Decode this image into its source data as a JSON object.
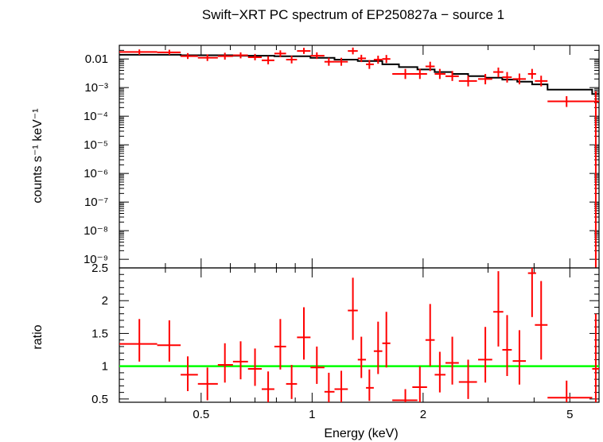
{
  "chart_data": [
    {
      "type": "line",
      "panel": "top",
      "title": "Swift−XRT PC spectrum of EP250827a − source 1",
      "ylabel": "counts s⁻¹ keV⁻¹",
      "xlabel": "",
      "xscale": "log",
      "yscale": "log",
      "xlim": [
        0.3,
        6.0
      ],
      "ylim": [
        5e-10,
        0.03
      ],
      "y_tick_labels": [
        "0.01",
        "10⁻³",
        "10⁻⁴",
        "10⁻⁵",
        "10⁻⁶",
        "10⁻⁷",
        "10⁻⁸",
        "10⁻⁹"
      ],
      "y_tick_values": [
        0.01,
        0.001,
        0.0001,
        1e-05,
        1e-06,
        1e-07,
        1e-08,
        1e-09
      ],
      "series": [
        {
          "kind": "data",
          "color": "#ff0000",
          "points": [
            {
              "x": 0.34,
              "xlo": 0.3,
              "xhi": 0.38,
              "y": 0.0175,
              "ylo": 0.014,
              "yhi": 0.0215
            },
            {
              "x": 0.41,
              "xlo": 0.38,
              "xhi": 0.44,
              "y": 0.017,
              "ylo": 0.014,
              "yhi": 0.021
            },
            {
              "x": 0.46,
              "xlo": 0.44,
              "xhi": 0.49,
              "y": 0.0125,
              "ylo": 0.01,
              "yhi": 0.016
            },
            {
              "x": 0.52,
              "xlo": 0.49,
              "xhi": 0.555,
              "y": 0.011,
              "ylo": 0.0085,
              "yhi": 0.0145
            },
            {
              "x": 0.58,
              "xlo": 0.555,
              "xhi": 0.61,
              "y": 0.0125,
              "ylo": 0.0095,
              "yhi": 0.0165
            },
            {
              "x": 0.64,
              "xlo": 0.61,
              "xhi": 0.67,
              "y": 0.0135,
              "ylo": 0.0105,
              "yhi": 0.017
            },
            {
              "x": 0.7,
              "xlo": 0.67,
              "xhi": 0.73,
              "y": 0.0115,
              "ylo": 0.009,
              "yhi": 0.015
            },
            {
              "x": 0.76,
              "xlo": 0.73,
              "xhi": 0.79,
              "y": 0.009,
              "ylo": 0.0065,
              "yhi": 0.0125
            },
            {
              "x": 0.82,
              "xlo": 0.79,
              "xhi": 0.85,
              "y": 0.0155,
              "ylo": 0.0115,
              "yhi": 0.02
            },
            {
              "x": 0.88,
              "xlo": 0.85,
              "xhi": 0.91,
              "y": 0.0095,
              "ylo": 0.007,
              "yhi": 0.013
            },
            {
              "x": 0.95,
              "xlo": 0.91,
              "xhi": 0.99,
              "y": 0.019,
              "ylo": 0.015,
              "yhi": 0.0245
            },
            {
              "x": 1.03,
              "xlo": 0.99,
              "xhi": 1.08,
              "y": 0.013,
              "ylo": 0.01,
              "yhi": 0.017
            },
            {
              "x": 1.11,
              "xlo": 1.08,
              "xhi": 1.15,
              "y": 0.008,
              "ylo": 0.0058,
              "yhi": 0.011
            },
            {
              "x": 1.2,
              "xlo": 1.15,
              "xhi": 1.25,
              "y": 0.008,
              "ylo": 0.0058,
              "yhi": 0.011
            },
            {
              "x": 1.29,
              "xlo": 1.25,
              "xhi": 1.33,
              "y": 0.019,
              "ylo": 0.0145,
              "yhi": 0.025
            },
            {
              "x": 1.36,
              "xlo": 1.33,
              "xhi": 1.4,
              "y": 0.0105,
              "ylo": 0.0078,
              "yhi": 0.014
            },
            {
              "x": 1.43,
              "xlo": 1.4,
              "xhi": 1.47,
              "y": 0.0065,
              "ylo": 0.0045,
              "yhi": 0.0092
            },
            {
              "x": 1.51,
              "xlo": 1.47,
              "xhi": 1.55,
              "y": 0.0095,
              "ylo": 0.0068,
              "yhi": 0.013
            },
            {
              "x": 1.59,
              "xlo": 1.55,
              "xhi": 1.63,
              "y": 0.01,
              "ylo": 0.0072,
              "yhi": 0.0138
            },
            {
              "x": 1.79,
              "xlo": 1.65,
              "xhi": 1.93,
              "y": 0.003,
              "ylo": 0.002,
              "yhi": 0.0045
            },
            {
              "x": 1.96,
              "xlo": 1.87,
              "xhi": 2.05,
              "y": 0.003,
              "ylo": 0.002,
              "yhi": 0.0045
            },
            {
              "x": 2.09,
              "xlo": 2.03,
              "xhi": 2.15,
              "y": 0.0055,
              "ylo": 0.0038,
              "yhi": 0.008
            },
            {
              "x": 2.22,
              "xlo": 2.15,
              "xhi": 2.3,
              "y": 0.003,
              "ylo": 0.002,
              "yhi": 0.0045
            },
            {
              "x": 2.4,
              "xlo": 2.3,
              "xhi": 2.5,
              "y": 0.0025,
              "ylo": 0.0017,
              "yhi": 0.0038
            },
            {
              "x": 2.65,
              "xlo": 2.5,
              "xhi": 2.8,
              "y": 0.0017,
              "ylo": 0.0011,
              "yhi": 0.0026
            },
            {
              "x": 2.95,
              "xlo": 2.82,
              "xhi": 3.08,
              "y": 0.002,
              "ylo": 0.0013,
              "yhi": 0.003
            },
            {
              "x": 3.2,
              "xlo": 3.1,
              "xhi": 3.3,
              "y": 0.0035,
              "ylo": 0.0023,
              "yhi": 0.005
            },
            {
              "x": 3.38,
              "xlo": 3.28,
              "xhi": 3.48,
              "y": 0.0023,
              "ylo": 0.0015,
              "yhi": 0.0035
            },
            {
              "x": 3.65,
              "xlo": 3.5,
              "xhi": 3.8,
              "y": 0.002,
              "ylo": 0.0013,
              "yhi": 0.0031
            },
            {
              "x": 3.95,
              "xlo": 3.85,
              "xhi": 4.05,
              "y": 0.003,
              "ylo": 0.002,
              "yhi": 0.0045
            },
            {
              "x": 4.18,
              "xlo": 4.02,
              "xhi": 4.35,
              "y": 0.0017,
              "ylo": 0.0011,
              "yhi": 0.0026
            },
            {
              "x": 4.9,
              "xlo": 4.35,
              "xhi": 5.75,
              "y": 0.00033,
              "ylo": 0.00021,
              "yhi": 0.0005
            },
            {
              "x": 5.88,
              "xlo": 5.75,
              "xhi": 6.0,
              "y": 0.00033,
              "ylo": 1e-11,
              "yhi": 0.00075
            }
          ]
        },
        {
          "kind": "model",
          "color": "#000000",
          "step_edges": [
            0.3,
            0.44,
            0.61,
            0.79,
            0.99,
            1.15,
            1.33,
            1.55,
            1.72,
            1.93,
            2.15,
            2.4,
            2.65,
            2.95,
            3.28,
            3.6,
            3.95,
            4.35,
            5.75,
            6.0
          ],
          "step_values": [
            0.014,
            0.0135,
            0.013,
            0.0125,
            0.011,
            0.0095,
            0.0085,
            0.0065,
            0.0052,
            0.0043,
            0.0035,
            0.003,
            0.0025,
            0.0022,
            0.0019,
            0.0016,
            0.0013,
            0.00085,
            0.0006
          ]
        }
      ]
    },
    {
      "type": "scatter",
      "panel": "bottom",
      "xlabel": "Energy (keV)",
      "ylabel": "ratio",
      "xscale": "log",
      "xlim": [
        0.3,
        6.0
      ],
      "ylim": [
        0.45,
        2.5
      ],
      "x_tick_labels": [
        "0.5",
        "1",
        "2",
        "5"
      ],
      "x_tick_values": [
        0.5,
        1,
        2,
        5
      ],
      "y_tick_labels": [
        "0.5",
        "1",
        "1.5",
        "2",
        "2.5"
      ],
      "y_tick_values": [
        0.5,
        1,
        1.5,
        2,
        2.5
      ],
      "reference_line": {
        "y": 1,
        "color": "#00ff00"
      },
      "series": [
        {
          "kind": "ratio",
          "color": "#ff0000",
          "points": [
            {
              "x": 0.34,
              "xlo": 0.3,
              "xhi": 0.38,
              "y": 1.34,
              "ylo": 1.07,
              "yhi": 1.72
            },
            {
              "x": 0.41,
              "xlo": 0.38,
              "xhi": 0.44,
              "y": 1.32,
              "ylo": 1.07,
              "yhi": 1.7
            },
            {
              "x": 0.46,
              "xlo": 0.44,
              "xhi": 0.49,
              "y": 0.87,
              "ylo": 0.62,
              "yhi": 1.15
            },
            {
              "x": 0.52,
              "xlo": 0.49,
              "xhi": 0.555,
              "y": 0.73,
              "ylo": 0.48,
              "yhi": 0.98
            },
            {
              "x": 0.58,
              "xlo": 0.555,
              "xhi": 0.61,
              "y": 1.02,
              "ylo": 0.75,
              "yhi": 1.35
            },
            {
              "x": 0.64,
              "xlo": 0.61,
              "xhi": 0.67,
              "y": 1.07,
              "ylo": 0.8,
              "yhi": 1.38
            },
            {
              "x": 0.7,
              "xlo": 0.67,
              "xhi": 0.73,
              "y": 0.96,
              "ylo": 0.7,
              "yhi": 1.27
            },
            {
              "x": 0.76,
              "xlo": 0.73,
              "xhi": 0.79,
              "y": 0.65,
              "ylo": 0.45,
              "yhi": 0.92
            },
            {
              "x": 0.82,
              "xlo": 0.79,
              "xhi": 0.85,
              "y": 1.3,
              "ylo": 0.95,
              "yhi": 1.72
            },
            {
              "x": 0.88,
              "xlo": 0.85,
              "xhi": 0.91,
              "y": 0.73,
              "ylo": 0.5,
              "yhi": 1.02
            },
            {
              "x": 0.95,
              "xlo": 0.91,
              "xhi": 0.99,
              "y": 1.44,
              "ylo": 1.1,
              "yhi": 1.9
            },
            {
              "x": 1.03,
              "xlo": 0.99,
              "xhi": 1.08,
              "y": 0.98,
              "ylo": 0.73,
              "yhi": 1.3
            },
            {
              "x": 1.11,
              "xlo": 1.08,
              "xhi": 1.15,
              "y": 0.61,
              "ylo": 0.45,
              "yhi": 0.9
            },
            {
              "x": 1.2,
              "xlo": 1.15,
              "xhi": 1.25,
              "y": 0.65,
              "ylo": 0.45,
              "yhi": 0.93
            },
            {
              "x": 1.29,
              "xlo": 1.25,
              "xhi": 1.33,
              "y": 1.85,
              "ylo": 1.4,
              "yhi": 2.35
            },
            {
              "x": 1.36,
              "xlo": 1.33,
              "xhi": 1.4,
              "y": 1.1,
              "ylo": 0.82,
              "yhi": 1.45
            },
            {
              "x": 1.43,
              "xlo": 1.4,
              "xhi": 1.47,
              "y": 0.67,
              "ylo": 0.47,
              "yhi": 0.95
            },
            {
              "x": 1.51,
              "xlo": 1.47,
              "xhi": 1.55,
              "y": 1.23,
              "ylo": 0.88,
              "yhi": 1.68
            },
            {
              "x": 1.59,
              "xlo": 1.55,
              "xhi": 1.63,
              "y": 1.35,
              "ylo": 0.98,
              "yhi": 1.83
            },
            {
              "x": 1.79,
              "xlo": 1.65,
              "xhi": 1.93,
              "y": 0.48,
              "ylo": 0.45,
              "yhi": 0.65
            },
            {
              "x": 1.96,
              "xlo": 1.87,
              "xhi": 2.05,
              "y": 0.68,
              "ylo": 0.45,
              "yhi": 1.0
            },
            {
              "x": 2.09,
              "xlo": 2.03,
              "xhi": 2.15,
              "y": 1.4,
              "ylo": 1.0,
              "yhi": 1.95
            },
            {
              "x": 2.22,
              "xlo": 2.15,
              "xhi": 2.3,
              "y": 0.87,
              "ylo": 0.6,
              "yhi": 1.22
            },
            {
              "x": 2.4,
              "xlo": 2.3,
              "xhi": 2.5,
              "y": 1.05,
              "ylo": 0.72,
              "yhi": 1.45
            },
            {
              "x": 2.65,
              "xlo": 2.5,
              "xhi": 2.8,
              "y": 0.76,
              "ylo": 0.5,
              "yhi": 1.1
            },
            {
              "x": 2.95,
              "xlo": 2.82,
              "xhi": 3.08,
              "y": 1.1,
              "ylo": 0.75,
              "yhi": 1.6
            },
            {
              "x": 3.2,
              "xlo": 3.1,
              "xhi": 3.3,
              "y": 1.83,
              "ylo": 1.3,
              "yhi": 2.45
            },
            {
              "x": 3.38,
              "xlo": 3.28,
              "xhi": 3.48,
              "y": 1.25,
              "ylo": 0.85,
              "yhi": 1.78
            },
            {
              "x": 3.65,
              "xlo": 3.5,
              "xhi": 3.8,
              "y": 1.08,
              "ylo": 0.72,
              "yhi": 1.55
            },
            {
              "x": 3.95,
              "xlo": 3.85,
              "xhi": 4.05,
              "y": 2.42,
              "ylo": 1.75,
              "yhi": 2.5
            },
            {
              "x": 4.18,
              "xlo": 4.02,
              "xhi": 4.35,
              "y": 1.63,
              "ylo": 1.1,
              "yhi": 2.3
            },
            {
              "x": 4.9,
              "xlo": 4.35,
              "xhi": 5.75,
              "y": 0.52,
              "ylo": 0.45,
              "yhi": 0.78
            },
            {
              "x": 5.88,
              "xlo": 5.75,
              "xhi": 6.0,
              "y": 0.96,
              "ylo": 0.45,
              "yhi": 1.8
            }
          ]
        }
      ]
    }
  ]
}
